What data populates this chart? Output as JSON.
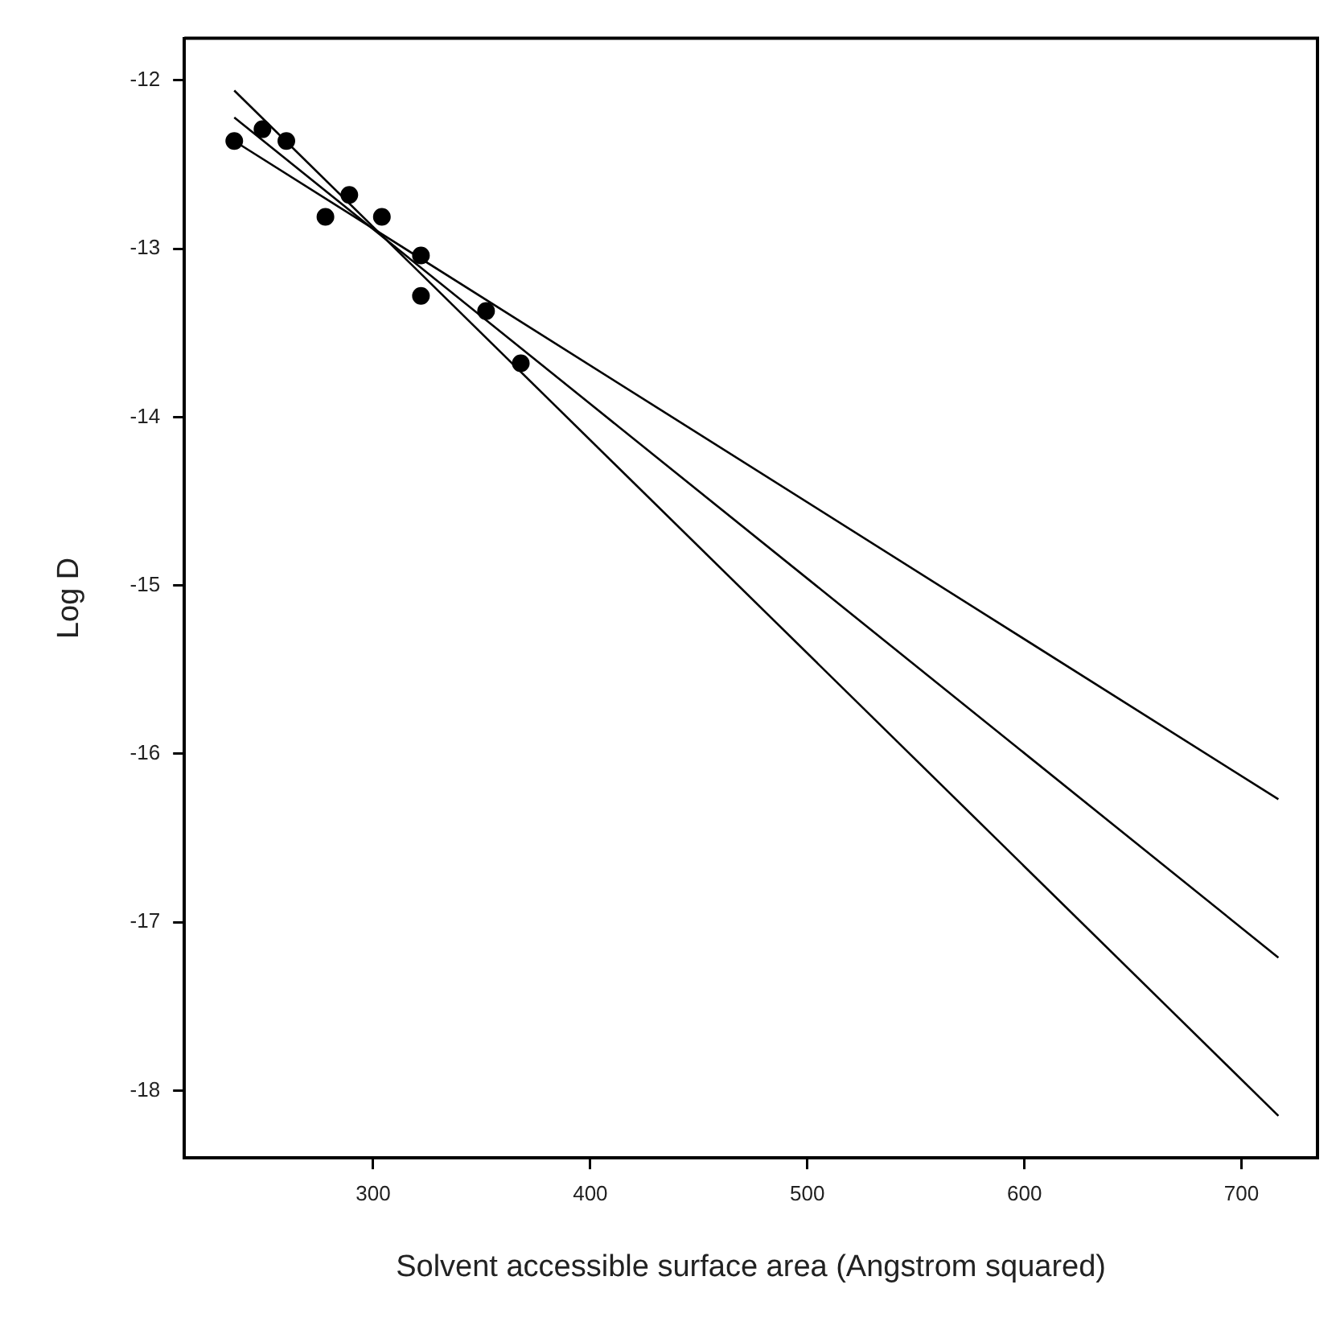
{
  "chart_data": {
    "type": "scatter",
    "xlabel": "Solvent accessible surface area (Angstrom squared)",
    "ylabel": "Log D",
    "xlim": [
      213,
      735
    ],
    "xticks": [
      300,
      400,
      500,
      600,
      700
    ],
    "ylim": [
      -18.4,
      -11.75
    ],
    "yticks": [
      -12,
      -13,
      -14,
      -15,
      -16,
      -17,
      -18
    ],
    "grid": false,
    "legend": false,
    "marker": "circle",
    "series": [
      {
        "color": "#000000",
        "x": [
          236,
          249,
          260,
          278,
          289,
          304,
          322,
          322,
          352,
          368
        ],
        "values": [
          -12.36,
          -12.29,
          -12.36,
          -12.81,
          -12.68,
          -12.81,
          -13.04,
          -13.28,
          -13.37,
          -13.68
        ]
      },
      {
        "type": "line",
        "color": "#000000",
        "marker": "none",
        "line_style": "solid",
        "x": [
          236,
          717
        ],
        "values": [
          -12.06,
          -18.15
        ]
      },
      {
        "type": "line",
        "color": "#000000",
        "marker": "none",
        "line_style": "solid",
        "x": [
          236,
          717
        ],
        "values": [
          -12.22,
          -17.21
        ]
      },
      {
        "type": "line",
        "color": "#000000",
        "marker": "none",
        "line_style": "solid",
        "x": [
          236,
          717
        ],
        "values": [
          -12.36,
          -16.27
        ]
      }
    ]
  }
}
